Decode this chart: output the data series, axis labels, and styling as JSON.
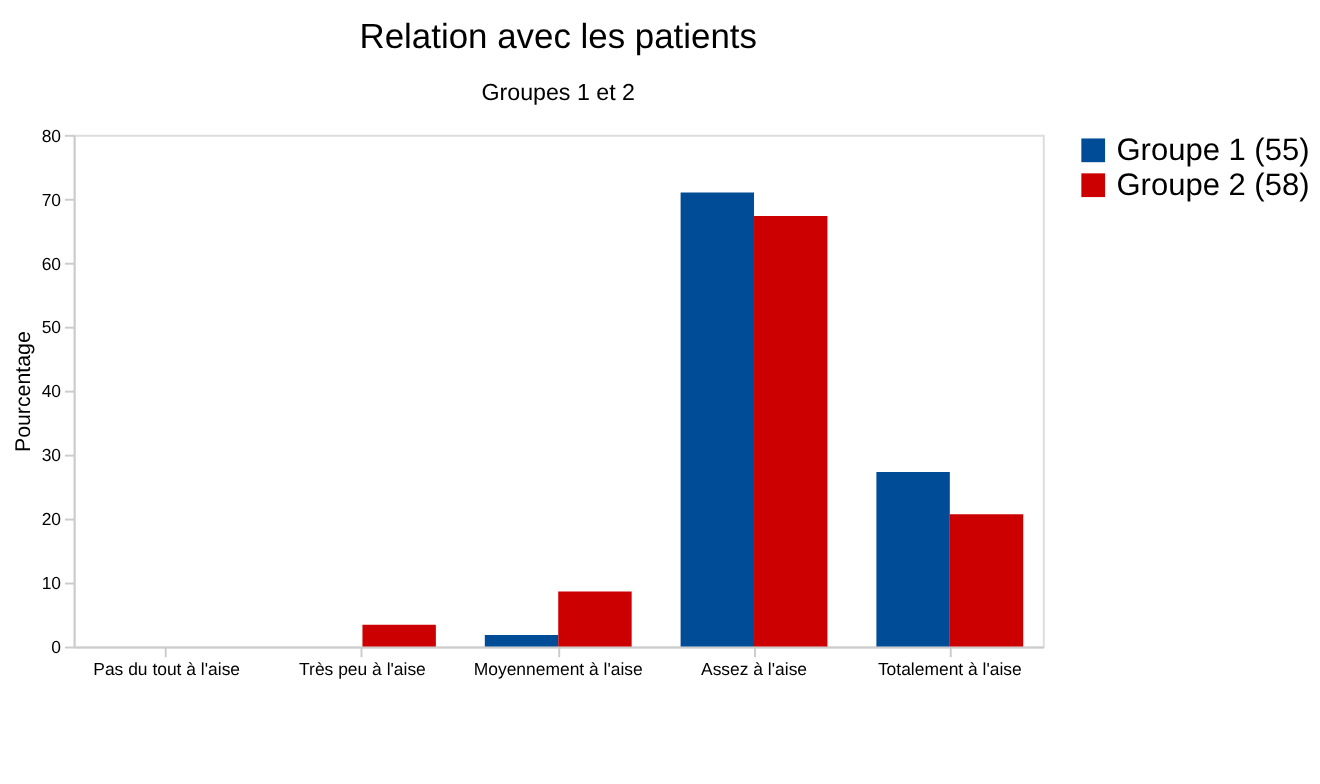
{
  "chart_data": {
    "type": "bar",
    "title": "Relation avec les patients",
    "subtitle": "Groupes 1 et 2",
    "ylabel": "Pourcentage",
    "categories": [
      "Pas du tout à l'aise",
      "Très peu à l'aise",
      "Moyennement à l'aise",
      "Assez à l'aise",
      "Totalement à l'aise"
    ],
    "series": [
      {
        "name": "Groupe 1 (55)",
        "color": "#004c97",
        "values": [
          0,
          0,
          1.8,
          71,
          27.3
        ]
      },
      {
        "name": "Groupe 2 (58)",
        "color": "#cc0000",
        "values": [
          0,
          3.4,
          8.6,
          67.3,
          20.7
        ]
      }
    ],
    "ylim": [
      0,
      80
    ],
    "yticks": [
      0,
      10,
      20,
      30,
      40,
      50,
      60,
      70,
      80
    ],
    "grid": false,
    "legend": "right"
  }
}
